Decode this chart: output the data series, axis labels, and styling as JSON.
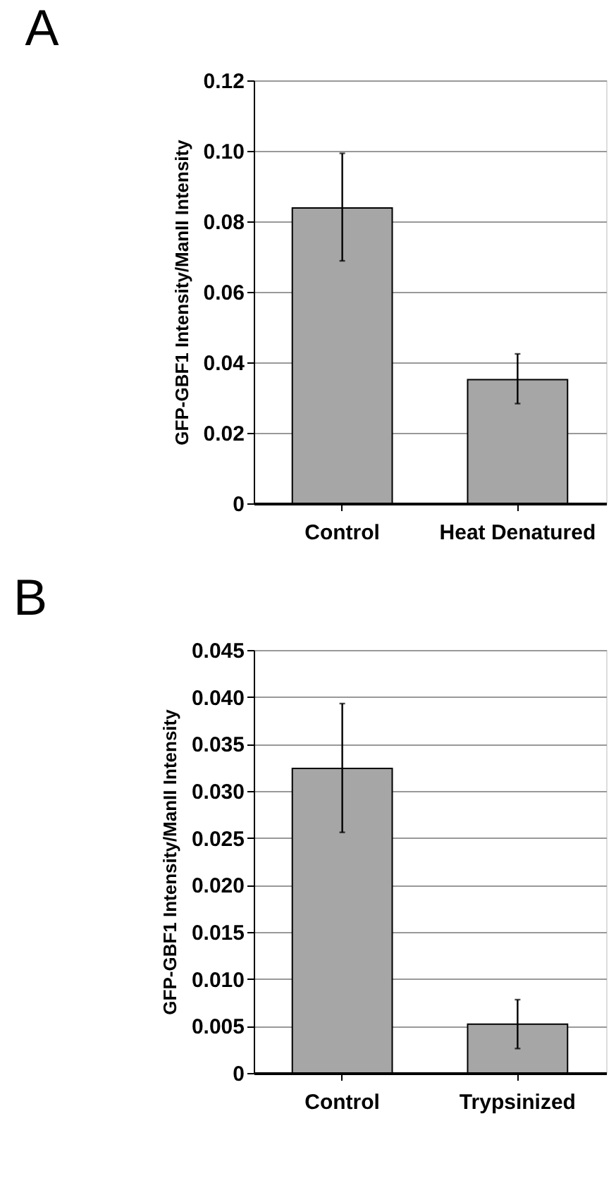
{
  "chart_data": [
    {
      "type": "bar",
      "title": "A",
      "ylabel": "GFP-GBF1 Intensity/ManII Intensity",
      "categories": [
        "Control",
        "Heat Denatured"
      ],
      "values": [
        0.0838,
        0.0351
      ],
      "color": "#a6a6a6",
      "errors": [
        [
          0.0688,
          0.0993
        ],
        [
          0.0283,
          0.0424
        ]
      ],
      "ylim": [
        0,
        0.12
      ],
      "yticks": [
        0,
        {
          "value": 0.02,
          "label": "0.02"
        },
        {
          "value": 0.04,
          "label": "0.04"
        },
        {
          "value": 0.06,
          "label": "0.06"
        },
        {
          "value": 0.08,
          "label": "0.08"
        },
        {
          "value": 0.1,
          "label": "0.10"
        },
        {
          "value": 0.12,
          "label": "0.12"
        }
      ],
      "grid": "y"
    },
    {
      "type": "bar",
      "title": "B",
      "ylabel": "GFP-GBF1 Intensity/ManII Intensity",
      "categories": [
        "Control",
        "Trypsinized"
      ],
      "values": [
        0.0324,
        0.0052
      ],
      "color": "#a6a6a6",
      "errors": [
        [
          0.0256,
          0.0393
        ],
        [
          0.0026,
          0.0078
        ]
      ],
      "ylim": [
        0,
        0.045
      ],
      "yticks": [
        0,
        {
          "value": 0.005,
          "label": "0.005"
        },
        {
          "value": 0.01,
          "label": "0.010"
        },
        {
          "value": 0.015,
          "label": "0.015"
        },
        {
          "value": 0.02,
          "label": "0.020"
        },
        {
          "value": 0.025,
          "label": "0.025"
        },
        {
          "value": 0.03,
          "label": "0.030"
        },
        {
          "value": 0.035,
          "label": "0.035"
        },
        {
          "value": 0.04,
          "label": "0.040"
        },
        {
          "value": 0.045,
          "label": "0.045"
        }
      ],
      "grid": "y"
    }
  ]
}
